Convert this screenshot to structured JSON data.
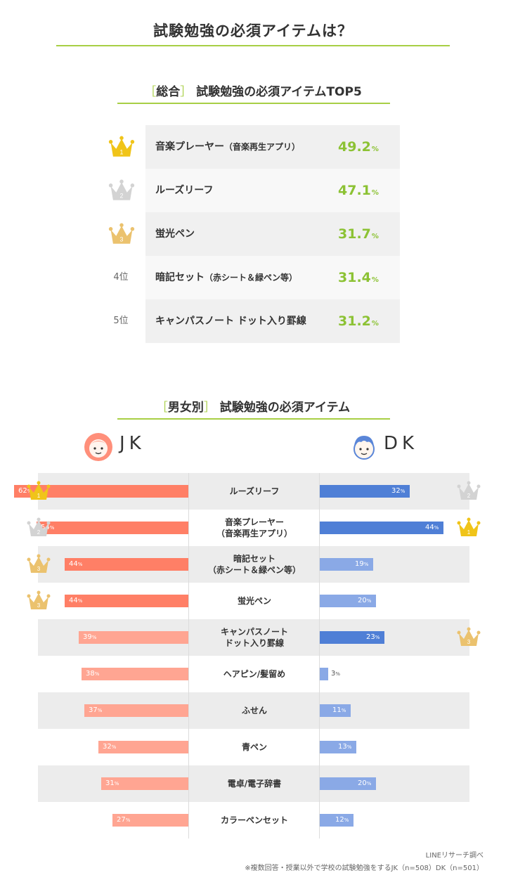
{
  "title": "試験勉強の必須アイテムは？",
  "top5": {
    "bracket_open": "［",
    "bracket_label": "総合",
    "bracket_close": "］",
    "title": "試験勉強の必須アイテムTOP5",
    "rows": [
      {
        "rank": "1",
        "name": "音楽プレーヤー",
        "sub": "（音楽再生アプリ）",
        "value": "49.2",
        "unit": "%",
        "crown": "gold"
      },
      {
        "rank": "2",
        "name": "ルーズリーフ",
        "sub": "",
        "value": "47.1",
        "unit": "%",
        "crown": "silver"
      },
      {
        "rank": "3",
        "name": "蛍光ペン",
        "sub": "",
        "value": "31.7",
        "unit": "%",
        "crown": "bronze"
      },
      {
        "rank": "4位",
        "name": "暗記セット",
        "sub": "（赤シート＆緑ペン等）",
        "value": "31.4",
        "unit": "%",
        "crown": ""
      },
      {
        "rank": "5位",
        "name": "キャンパスノート ドット入り罫線",
        "sub": "",
        "value": "31.2",
        "unit": "%",
        "crown": ""
      }
    ]
  },
  "gender": {
    "bracket_open": "［",
    "bracket_label": "男女別",
    "bracket_close": "］",
    "title": "試験勉強の必須アイテム",
    "jk_label": "JK",
    "dk_label": "DK"
  },
  "chart_data": {
    "type": "bar",
    "orientation": "horizontal-butterfly",
    "categories": [
      [
        "ルーズリーフ"
      ],
      [
        "音楽プレーヤー",
        "（音楽再生アプリ）"
      ],
      [
        "暗記セット",
        "（赤シート＆緑ペン等）"
      ],
      [
        "蛍光ペン"
      ],
      [
        "キャンパスノート",
        "ドット入り罫線"
      ],
      [
        "ヘアピン/髪留め"
      ],
      [
        "ふせん"
      ],
      [
        "青ペン"
      ],
      [
        "電卓/電子辞書"
      ],
      [
        "カラーペンセット"
      ]
    ],
    "series": [
      {
        "name": "JK",
        "values": [
          62,
          54,
          44,
          44,
          39,
          38,
          37,
          32,
          31,
          27
        ],
        "ranks": [
          "1",
          "2",
          "3",
          "3",
          "",
          "",
          "",
          "",
          "",
          ""
        ]
      },
      {
        "name": "DK",
        "values": [
          32,
          44,
          19,
          20,
          23,
          3,
          11,
          13,
          20,
          12
        ],
        "ranks": [
          "2",
          "1",
          "",
          "",
          "3",
          "",
          "",
          "",
          "",
          ""
        ]
      }
    ],
    "unit": "%",
    "xlim": [
      0,
      70
    ]
  },
  "colors": {
    "accent_green": "#a8cf45",
    "value_green": "#8cc234",
    "jk_top": "#ff7f66",
    "jk_rest": "#ffa592",
    "dk_top": "#4f7fd6",
    "dk_rest": "#8aa9e6",
    "gold": "#f0c419",
    "silver": "#d3d3d3",
    "bronze": "#ebc26e"
  },
  "footer": {
    "line1": "LINEリサーチ調べ",
    "line2": "※複数回答・授業以外で学校の試験勉強をするJK（n=508）DK（n=501）"
  }
}
